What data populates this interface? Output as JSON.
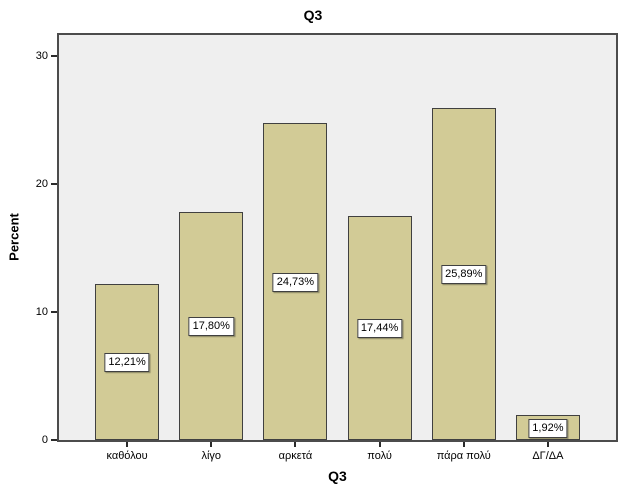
{
  "chart_data": {
    "type": "bar",
    "title": "Q3",
    "xlabel": "Q3",
    "ylabel": "Percent",
    "categories": [
      "καθόλου",
      "λίγο",
      "αρκετά",
      "πολύ",
      "πάρα πολύ",
      "ΔΓ/ΔΑ"
    ],
    "values": [
      12.21,
      17.8,
      24.73,
      17.44,
      25.89,
      1.92
    ],
    "value_labels": [
      "12,21%",
      "17,80%",
      "24,73%",
      "17,44%",
      "25,89%",
      "1,92%"
    ],
    "yticks": [
      0,
      10,
      20,
      30
    ],
    "ytick_labels": [
      "0",
      "10",
      "20",
      "30"
    ],
    "ylim": [
      0,
      31.6
    ],
    "grid": false,
    "legend": "none",
    "colors": {
      "bar_fill": "#d2cb96",
      "bar_border": "#404040",
      "plot_bg": "#efefef",
      "frame_border": "#4c4c4c",
      "axis": "#2b2b2b",
      "label_box_bg": "#ffffff",
      "label_box_border": "#404040",
      "text": "#000000"
    }
  }
}
